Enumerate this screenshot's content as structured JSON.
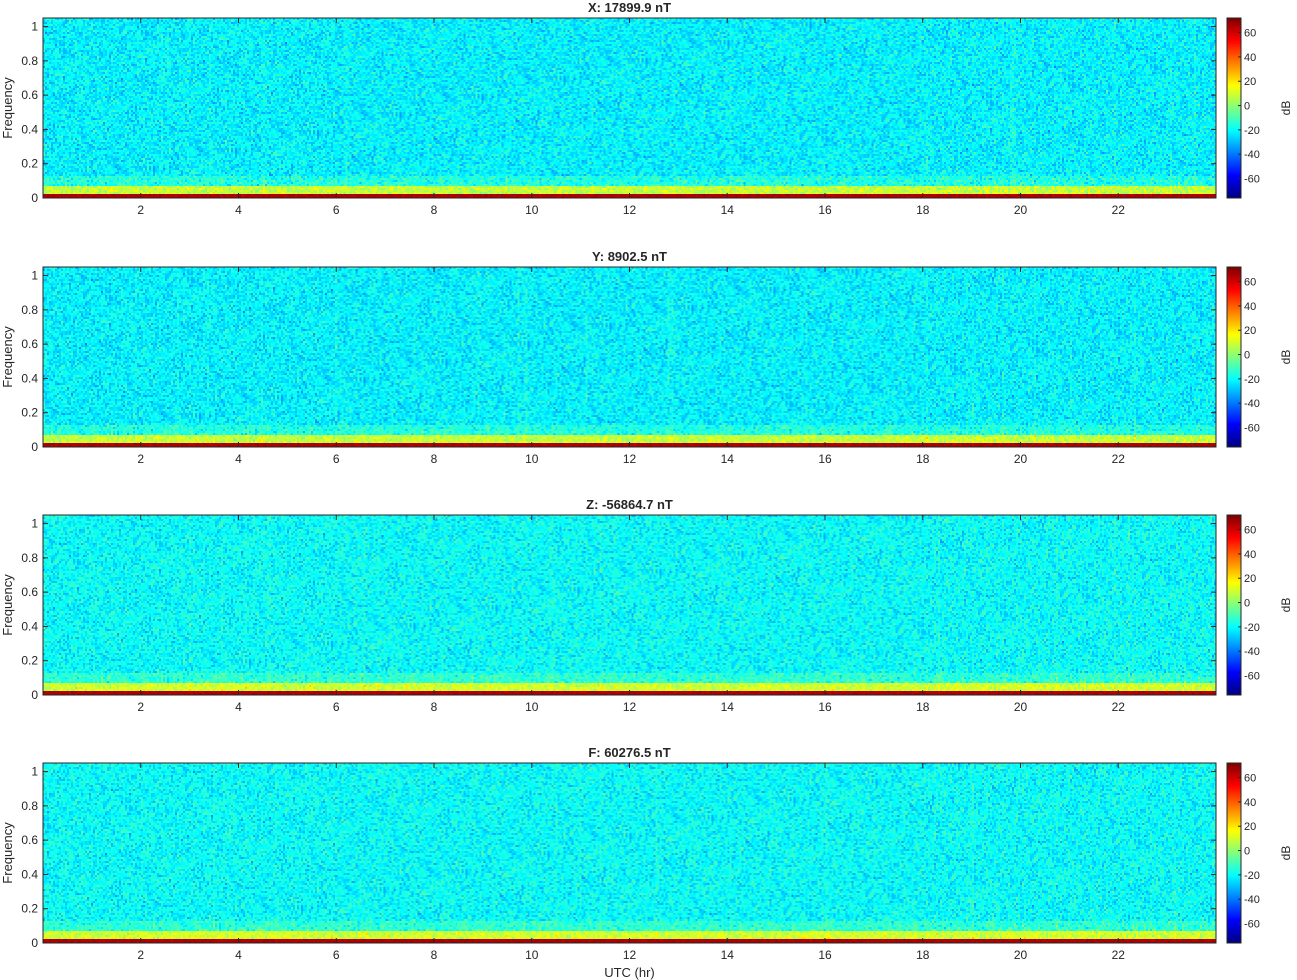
{
  "chart_data": [
    {
      "type": "heatmap",
      "title": "X: 17899.9 nT",
      "ylabel": "Frequency",
      "xlabel": "",
      "x_ticks": [
        2,
        4,
        6,
        8,
        10,
        12,
        14,
        16,
        18,
        20,
        22
      ],
      "y_ticks": [
        0,
        0.2,
        0.4,
        0.6,
        0.8,
        1
      ],
      "xlim": [
        0,
        24
      ],
      "ylim": [
        0,
        1.05
      ],
      "colorbar": {
        "label": "dB",
        "ticks": [
          60,
          40,
          20,
          0,
          -20,
          -40,
          -60
        ],
        "range": [
          -76,
          72
        ]
      },
      "levels": {
        "background_db": -22,
        "low_band_db": 8,
        "dc_db": 65
      }
    },
    {
      "type": "heatmap",
      "title": "Y: 8902.5 nT",
      "ylabel": "Frequency",
      "xlabel": "",
      "x_ticks": [
        2,
        4,
        6,
        8,
        10,
        12,
        14,
        16,
        18,
        20,
        22
      ],
      "y_ticks": [
        0,
        0.2,
        0.4,
        0.6,
        0.8,
        1
      ],
      "xlim": [
        0,
        24
      ],
      "ylim": [
        0,
        1.05
      ],
      "colorbar": {
        "label": "dB",
        "ticks": [
          60,
          40,
          20,
          0,
          -20,
          -40,
          -60
        ],
        "range": [
          -76,
          72
        ]
      },
      "levels": {
        "background_db": -22,
        "low_band_db": 8,
        "dc_db": 65
      }
    },
    {
      "type": "heatmap",
      "title": "Z: -56864.7 nT",
      "ylabel": "Frequency",
      "xlabel": "",
      "x_ticks": [
        2,
        4,
        6,
        8,
        10,
        12,
        14,
        16,
        18,
        20,
        22
      ],
      "y_ticks": [
        0,
        0.2,
        0.4,
        0.6,
        0.8,
        1
      ],
      "xlim": [
        0,
        24
      ],
      "ylim": [
        0,
        1.05
      ],
      "colorbar": {
        "label": "dB",
        "ticks": [
          60,
          40,
          20,
          0,
          -20,
          -40,
          -60
        ],
        "range": [
          -76,
          72
        ]
      },
      "levels": {
        "background_db": -20,
        "low_band_db": 10,
        "dc_db": 65
      }
    },
    {
      "type": "heatmap",
      "title": "F: 60276.5 nT",
      "ylabel": "Frequency",
      "xlabel": "UTC (hr)",
      "x_ticks": [
        2,
        4,
        6,
        8,
        10,
        12,
        14,
        16,
        18,
        20,
        22
      ],
      "y_ticks": [
        0,
        0.2,
        0.4,
        0.6,
        0.8,
        1
      ],
      "xlim": [
        0,
        24
      ],
      "ylim": [
        0,
        1.05
      ],
      "colorbar": {
        "label": "dB",
        "ticks": [
          60,
          40,
          20,
          0,
          -20,
          -40,
          -60
        ],
        "range": [
          -76,
          72
        ]
      },
      "levels": {
        "background_db": -20,
        "low_band_db": 10,
        "dc_db": 65
      }
    }
  ]
}
